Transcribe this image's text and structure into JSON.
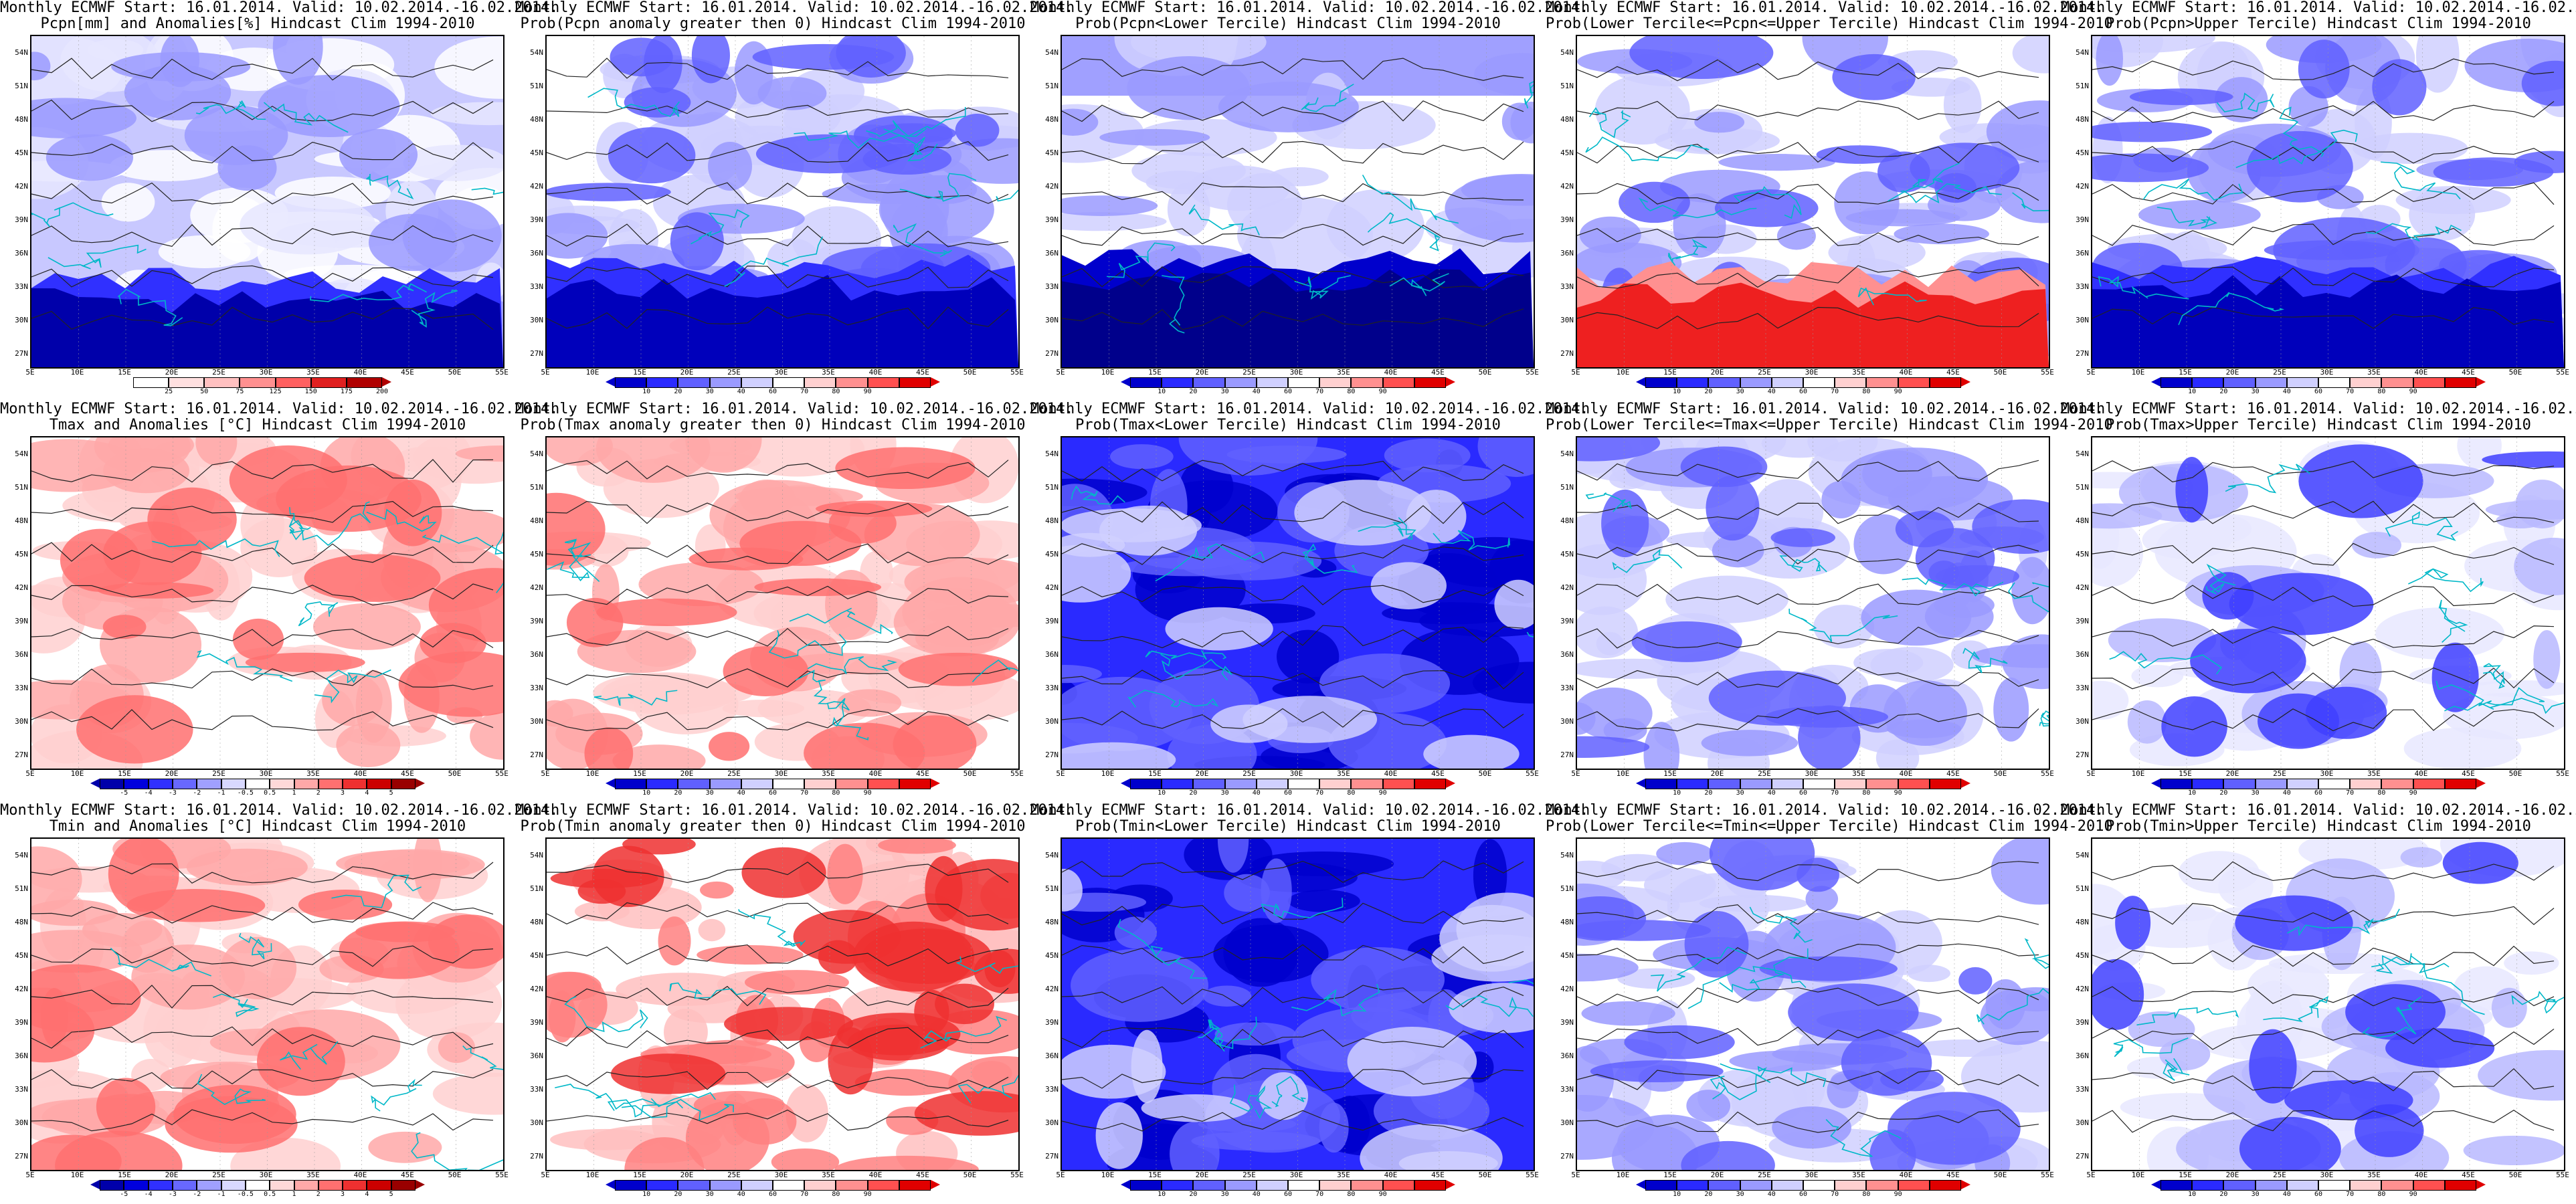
{
  "header_line": "Monthly ECMWF Start: 16.01.2014. Valid: 10.02.2014.-16.02.2014.",
  "lat_labels": [
    "54N",
    "51N",
    "48N",
    "45N",
    "42N",
    "39N",
    "36N",
    "33N",
    "30N",
    "27N"
  ],
  "lon_labels": [
    "5E",
    "10E",
    "15E",
    "20E",
    "25E",
    "30E",
    "35E",
    "40E",
    "45E",
    "50E",
    "55E"
  ],
  "colorbars": {
    "anom_pcpn": {
      "labels": [
        "25",
        "50",
        "75",
        "125",
        "150",
        "175",
        "200"
      ],
      "colors": [
        "#ffffff",
        "#ffe0e0",
        "#ffc0c0",
        "#ff9090",
        "#ff6060",
        "#e02020",
        "#b00000"
      ]
    },
    "prob": {
      "labels": [
        "10",
        "20",
        "30",
        "40",
        "60",
        "70",
        "80",
        "90"
      ],
      "colors": [
        "#0000cc",
        "#2a2aff",
        "#6060ff",
        "#9a9aff",
        "#d0d0ff",
        "#ffffff",
        "#ffd0d0",
        "#ff9090",
        "#ff5050",
        "#e00000"
      ]
    },
    "anom_temp": {
      "labels": [
        "-5",
        "-4",
        "-3",
        "-2",
        "-1",
        "-0.5",
        "0.5",
        "1",
        "2",
        "3",
        "4",
        "5"
      ],
      "colors": [
        "#0000aa",
        "#0000dd",
        "#3030ff",
        "#6868ff",
        "#a0a0ff",
        "#d8d8ff",
        "#ffffff",
        "#ffd8d8",
        "#ffa8a8",
        "#ff7070",
        "#ee3030",
        "#cc0000",
        "#990000"
      ]
    }
  },
  "panels": [
    {
      "id": "p1",
      "subtitle": "Pcpn[mm] and Anomalies[%] Hindcast Clim 1994-2010",
      "palette": "anom_pcpn",
      "style": "pcpn-anom"
    },
    {
      "id": "p2",
      "subtitle": "Prob(Pcpn anomaly greater then 0) Hindcast Clim 1994-2010",
      "palette": "prob",
      "style": "blue-south"
    },
    {
      "id": "p3",
      "subtitle": "Prob(Pcpn<Lower Tercile) Hindcast Clim 1994-2010",
      "palette": "prob",
      "style": "blue-dark-south"
    },
    {
      "id": "p4",
      "subtitle": "Prob(Lower Tercile<=Pcpn<=Upper Tercile) Hindcast Clim 1994-2010",
      "palette": "prob",
      "style": "red-south"
    },
    {
      "id": "p5",
      "subtitle": "Prob(Pcpn>Upper Tercile) Hindcast Clim 1994-2010",
      "palette": "prob",
      "style": "blue-south"
    },
    {
      "id": "p6",
      "subtitle": "Tmax and Anomalies [°C] Hindcast Clim 1994-2010",
      "palette": "anom_temp",
      "style": "red-warm"
    },
    {
      "id": "p7",
      "subtitle": "Prob(Tmax anomaly greater then 0) Hindcast Clim 1994-2010",
      "palette": "prob",
      "style": "red-warm"
    },
    {
      "id": "p8",
      "subtitle": "Prob(Tmax<Lower Tercile) Hindcast Clim 1994-2010",
      "palette": "prob",
      "style": "blue-all"
    },
    {
      "id": "p9",
      "subtitle": "Prob(Lower Tercile<=Tmax<=Upper Tercile) Hindcast Clim 1994-2010",
      "palette": "prob",
      "style": "blue-mid"
    },
    {
      "id": "p10",
      "subtitle": "Prob(Tmax>Upper Tercile) Hindcast Clim 1994-2010",
      "palette": "prob",
      "style": "white-light"
    },
    {
      "id": "p11",
      "subtitle": "Tmin and Anomalies [°C] Hindcast Clim 1994-2010",
      "palette": "anom_temp",
      "style": "red-warm"
    },
    {
      "id": "p12",
      "subtitle": "Prob(Tmin anomaly greater then 0) Hindcast Clim 1994-2010",
      "palette": "prob",
      "style": "red-strong"
    },
    {
      "id": "p13",
      "subtitle": "Prob(Tmin<Lower Tercile) Hindcast Clim 1994-2010",
      "palette": "prob",
      "style": "blue-all"
    },
    {
      "id": "p14",
      "subtitle": "Prob(Lower Tercile<=Tmin<=Upper Tercile) Hindcast Clim 1994-2010",
      "palette": "prob",
      "style": "blue-mid"
    },
    {
      "id": "p15",
      "subtitle": "Prob(Tmin>Upper Tercile) Hindcast Clim 1994-2010",
      "palette": "prob",
      "style": "white-light"
    }
  ]
}
